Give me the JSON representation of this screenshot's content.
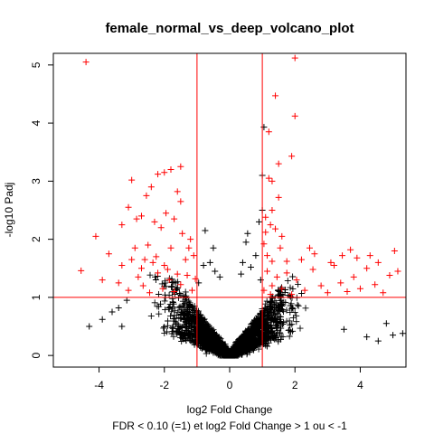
{
  "chart_data": {
    "type": "scatter",
    "title": "female_normal_vs_deep_volcano_plot",
    "xlabel": "log2 Fold Change",
    "xlabel2": "FDR < 0.10 (=1) et log2 Fold Change > 1 ou < -1",
    "ylabel": "-log10 Padj",
    "xlim": [
      -5.4,
      5.4
    ],
    "ylim": [
      -0.2,
      5.2
    ],
    "xticks": [
      -4,
      -2,
      0,
      2,
      4
    ],
    "yticks": [
      0,
      1,
      2,
      3,
      4,
      5
    ],
    "marker": "+",
    "threshold_lines": {
      "x": [
        -1,
        1
      ],
      "y": [
        1
      ]
    },
    "colors": {
      "significant": "#ff0000",
      "non_significant": "#000000",
      "threshold": "#ff0000",
      "axis": "#000000"
    },
    "series": [
      {
        "color": "#ff0000",
        "points": [
          [
            -4.4,
            5.05
          ],
          [
            2.0,
            5.12
          ],
          [
            1.4,
            4.47
          ],
          [
            2.0,
            4.12
          ],
          [
            1.2,
            3.85
          ],
          [
            1.5,
            3.3
          ],
          [
            1.9,
            3.43
          ],
          [
            -1.8,
            3.2
          ],
          [
            -2.0,
            3.15
          ],
          [
            -2.2,
            3.12
          ],
          [
            -3.0,
            3.02
          ],
          [
            1.3,
            3.0
          ],
          [
            1.2,
            3.05
          ],
          [
            -1.5,
            3.25
          ],
          [
            -2.4,
            2.9
          ],
          [
            -2.55,
            2.75
          ],
          [
            -1.6,
            2.82
          ],
          [
            -1.5,
            2.65
          ],
          [
            -3.1,
            2.55
          ],
          [
            1.5,
            2.72
          ],
          [
            1.3,
            2.5
          ],
          [
            1.1,
            2.38
          ],
          [
            1.1,
            2.12
          ],
          [
            1.25,
            2.25
          ],
          [
            1.4,
            2.18
          ],
          [
            1.6,
            2.05
          ],
          [
            -4.1,
            2.05
          ],
          [
            -3.3,
            2.25
          ],
          [
            -2.85,
            2.35
          ],
          [
            -2.7,
            2.4
          ],
          [
            -2.3,
            2.3
          ],
          [
            -2.1,
            2.2
          ],
          [
            -1.95,
            2.45
          ],
          [
            -1.7,
            2.35
          ],
          [
            -1.45,
            2.1
          ],
          [
            -1.2,
            2.0
          ],
          [
            -1.1,
            1.72
          ],
          [
            1.05,
            1.92
          ],
          [
            1.15,
            1.72
          ],
          [
            1.3,
            1.62
          ],
          [
            -3.7,
            1.75
          ],
          [
            -3.3,
            1.55
          ],
          [
            -3.0,
            1.65
          ],
          [
            -2.7,
            1.5
          ],
          [
            -2.5,
            1.9
          ],
          [
            -2.25,
            1.7
          ],
          [
            -2.0,
            1.55
          ],
          [
            -1.8,
            1.85
          ],
          [
            -1.6,
            1.4
          ],
          [
            -1.35,
            1.65
          ],
          [
            -4.55,
            1.46
          ],
          [
            -3.9,
            1.3
          ],
          [
            -3.4,
            1.25
          ],
          [
            -3.1,
            1.12
          ],
          [
            -2.8,
            1.35
          ],
          [
            -2.65,
            1.2
          ],
          [
            -2.45,
            1.08
          ],
          [
            -2.2,
            1.42
          ],
          [
            -2.05,
            1.15
          ],
          [
            -1.85,
            1.3
          ],
          [
            -1.7,
            1.1
          ],
          [
            -1.5,
            1.22
          ],
          [
            -1.3,
            1.38
          ],
          [
            -1.15,
            1.12
          ],
          [
            -1.05,
            1.32
          ],
          [
            -2.9,
            1.85
          ],
          [
            -2.35,
            1.6
          ],
          [
            -1.25,
            1.85
          ],
          [
            -1.9,
            1.48
          ],
          [
            -2.6,
            1.65
          ],
          [
            1.05,
            1.12
          ],
          [
            1.15,
            1.45
          ],
          [
            1.3,
            1.2
          ],
          [
            1.45,
            1.35
          ],
          [
            1.6,
            1.15
          ],
          [
            1.75,
            1.42
          ],
          [
            1.9,
            1.05
          ],
          [
            2.05,
            1.3
          ],
          [
            2.3,
            1.12
          ],
          [
            2.55,
            1.48
          ],
          [
            2.8,
            1.2
          ],
          [
            3.0,
            1.08
          ],
          [
            3.2,
            1.55
          ],
          [
            3.4,
            1.25
          ],
          [
            3.6,
            1.1
          ],
          [
            3.8,
            1.35
          ],
          [
            4.0,
            1.15
          ],
          [
            4.2,
            1.5
          ],
          [
            4.45,
            1.22
          ],
          [
            4.7,
            1.08
          ],
          [
            4.9,
            1.38
          ],
          [
            5.15,
            1.45
          ],
          [
            2.2,
            1.65
          ],
          [
            2.6,
            1.75
          ],
          [
            3.1,
            1.6
          ],
          [
            3.45,
            1.72
          ],
          [
            3.9,
            1.68
          ],
          [
            4.3,
            1.72
          ],
          [
            4.55,
            1.6
          ],
          [
            5.05,
            1.8
          ],
          [
            2.45,
            1.85
          ],
          [
            3.7,
            1.82
          ],
          [
            1.55,
            1.85
          ],
          [
            1.75,
            1.62
          ],
          [
            1.25,
            1.05
          ]
        ]
      },
      {
        "color": "#000000",
        "points": [
          [
            1.05,
            3.93
          ],
          [
            1.0,
            3.1
          ],
          [
            -0.75,
            2.15
          ],
          [
            1.0,
            2.5
          ],
          [
            0.9,
            2.3
          ],
          [
            0.55,
            2.1
          ],
          [
            -0.5,
            1.85
          ],
          [
            -0.8,
            1.55
          ],
          [
            0.5,
            1.95
          ],
          [
            0.4,
            1.6
          ],
          [
            -0.6,
            1.6
          ],
          [
            0.8,
            1.72
          ],
          [
            -0.3,
            1.35
          ],
          [
            0.35,
            1.4
          ],
          [
            0.95,
            1.3
          ],
          [
            -0.95,
            1.25
          ],
          [
            0.65,
            1.52
          ],
          [
            -0.45,
            1.45
          ],
          [
            -4.3,
            0.5
          ],
          [
            -3.9,
            0.62
          ],
          [
            -3.4,
            0.82
          ],
          [
            -3.6,
            0.75
          ],
          [
            4.2,
            0.32
          ],
          [
            4.55,
            0.25
          ],
          [
            5.0,
            0.35
          ],
          [
            4.8,
            0.55
          ],
          [
            5.3,
            0.38
          ],
          [
            3.5,
            0.45
          ],
          [
            -3.3,
            0.5
          ],
          [
            -3.15,
            0.95
          ]
        ]
      }
    ]
  }
}
